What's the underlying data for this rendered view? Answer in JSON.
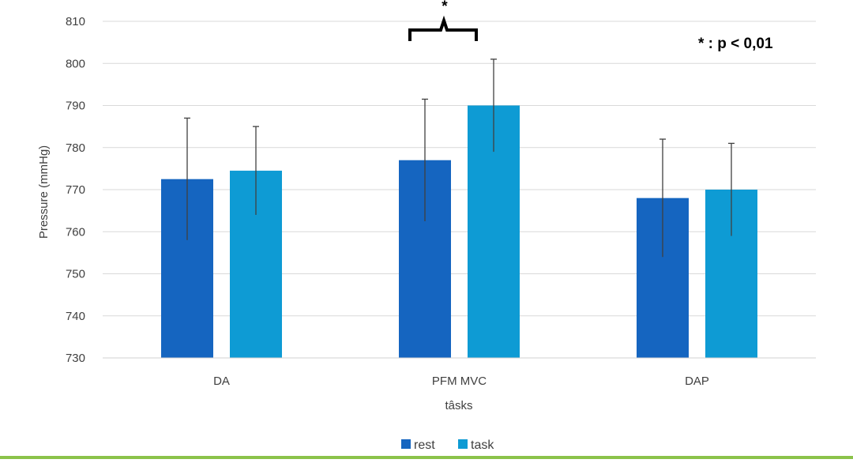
{
  "chart_data": {
    "type": "bar",
    "categories": [
      "DA",
      "PFM MVC",
      "DAP"
    ],
    "series": [
      {
        "name": "rest",
        "color": "#1565c0",
        "values": [
          772.5,
          777,
          768
        ],
        "errors": [
          14.5,
          14.5,
          14
        ]
      },
      {
        "name": "task",
        "color": "#0e9bd4",
        "values": [
          774.5,
          790,
          770
        ],
        "errors": [
          10.5,
          11,
          11
        ]
      }
    ],
    "xlabel": "tâsks",
    "ylabel": "Pressure (mmHg)",
    "ylim": [
      730,
      810
    ],
    "yticks": [
      730,
      740,
      750,
      760,
      770,
      780,
      790,
      800,
      810
    ],
    "grid": true,
    "legend": "bottom",
    "annotations": {
      "significance_mark": "*",
      "significance_note": "* : p < 0,01",
      "significance_category": "PFM MVC"
    }
  }
}
